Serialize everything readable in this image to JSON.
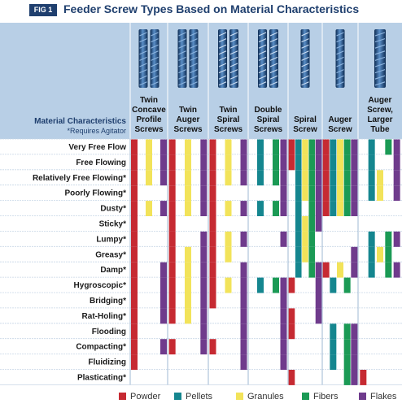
{
  "figure_label": "FIG 1",
  "title": "Feeder Screw Types Based on Material Characteristics",
  "header_label_line1": "Material Characteristics",
  "header_label_line2": "*Requires Agitator",
  "colors": {
    "Powder": "#c62a32",
    "Pellets": "#15868f",
    "Granules": "#f2e35a",
    "Fibers": "#1b9a55",
    "Flakes": "#6f3b8c"
  },
  "chart_data": {
    "type": "table",
    "title": "Feeder Screw Types Based on Material Characteristics",
    "columns": [
      {
        "name": "Twin Concave Profile Screws",
        "lines": [
          "Twin",
          "Concave",
          "Profile",
          "Screws"
        ]
      },
      {
        "name": "Twin Auger Screws",
        "lines": [
          "Twin",
          "Auger",
          "Screws"
        ]
      },
      {
        "name": "Twin Spiral Screws",
        "lines": [
          "Twin",
          "Spiral",
          "Screws"
        ]
      },
      {
        "name": "Double Spiral Screws",
        "lines": [
          "Double",
          "Spiral",
          "Screws"
        ]
      },
      {
        "name": "Spiral Screw",
        "lines": [
          "Spiral",
          "Screw"
        ]
      },
      {
        "name": "Auger Screw",
        "lines": [
          "Auger",
          "Screw"
        ]
      },
      {
        "name": "Auger Screw, Larger Tube",
        "lines": [
          "Auger",
          "Screw,",
          "Larger",
          "Tube"
        ]
      }
    ],
    "rows": [
      "Very Free Flow",
      "Free Flowing",
      "Relatively Free Flowing*",
      "Poorly Flowing*",
      "Dusty*",
      "Sticky*",
      "Lumpy*",
      "Greasy*",
      "Damp*",
      "Hygroscopic*",
      "Bridging*",
      "Rat-Holing*",
      "Flooding",
      "Compacting*",
      "Fluidizing",
      "Plasticating*"
    ],
    "legend": [
      "Powder",
      "Pellets",
      "Granules",
      "Fibers",
      "Flakes"
    ],
    "cells": [
      [
        [
          "Powder",
          "Granules",
          "Flakes"
        ],
        [
          "Powder",
          "Granules",
          "Flakes"
        ],
        [
          "Powder",
          "Granules",
          "Flakes"
        ],
        [
          "Pellets",
          "Fibers",
          "Flakes"
        ],
        [
          "Powder",
          "Pellets",
          "Granules",
          "Fibers",
          "Flakes"
        ],
        [
          "Powder",
          "Pellets",
          "Granules",
          "Fibers",
          "Flakes"
        ],
        [
          "Pellets",
          "Fibers",
          "Flakes"
        ]
      ],
      [
        [
          "Powder",
          "Granules",
          "Flakes"
        ],
        [
          "Powder",
          "Granules",
          "Flakes"
        ],
        [
          "Powder",
          "Granules",
          "Flakes"
        ],
        [
          "Pellets",
          "Fibers",
          "Flakes"
        ],
        [
          "Powder",
          "Pellets",
          "Granules",
          "Fibers",
          "Flakes"
        ],
        [
          "Powder",
          "Pellets",
          "Granules",
          "Fibers",
          "Flakes"
        ],
        [
          "Pellets",
          "Flakes"
        ]
      ],
      [
        [
          "Powder",
          "Granules",
          "Flakes"
        ],
        [
          "Powder",
          "Granules",
          "Flakes"
        ],
        [
          "Powder",
          "Granules",
          "Flakes"
        ],
        [
          "Pellets",
          "Fibers",
          "Flakes"
        ],
        [
          "Pellets",
          "Granules",
          "Fibers",
          "Flakes"
        ],
        [
          "Powder",
          "Pellets",
          "Granules",
          "Fibers",
          "Flakes"
        ],
        [
          "Pellets",
          "Granules",
          "Flakes"
        ]
      ],
      [
        [
          "Powder"
        ],
        [
          "Powder",
          "Granules",
          "Flakes"
        ],
        [
          "Powder"
        ],
        [
          "Flakes"
        ],
        [
          "Pellets",
          "Granules",
          "Fibers",
          "Flakes"
        ],
        [
          "Powder",
          "Pellets",
          "Granules",
          "Fibers",
          "Flakes"
        ],
        [
          "Pellets",
          "Granules",
          "Flakes"
        ]
      ],
      [
        [
          "Powder",
          "Granules",
          "Flakes"
        ],
        [
          "Powder",
          "Granules",
          "Flakes"
        ],
        [
          "Powder",
          "Granules",
          "Flakes"
        ],
        [
          "Pellets",
          "Fibers",
          "Flakes"
        ],
        [
          "Pellets",
          "Fibers",
          "Flakes"
        ],
        [
          "Powder",
          "Pellets",
          "Granules",
          "Fibers",
          "Flakes"
        ],
        []
      ],
      [
        [
          "Powder"
        ],
        [
          "Powder"
        ],
        [
          "Powder"
        ],
        [],
        [
          "Pellets",
          "Granules",
          "Fibers",
          "Flakes"
        ],
        [],
        []
      ],
      [
        [
          "Powder"
        ],
        [
          "Powder",
          "Flakes"
        ],
        [
          "Powder",
          "Granules",
          "Flakes"
        ],
        [
          "Flakes"
        ],
        [
          "Pellets",
          "Granules",
          "Fibers"
        ],
        [],
        [
          "Pellets",
          "Fibers",
          "Flakes"
        ]
      ],
      [
        [
          "Powder"
        ],
        [
          "Powder",
          "Granules",
          "Flakes"
        ],
        [
          "Powder",
          "Granules"
        ],
        [],
        [
          "Pellets",
          "Granules",
          "Fibers"
        ],
        [
          "Flakes"
        ],
        [
          "Pellets",
          "Granules",
          "Fibers"
        ]
      ],
      [
        [
          "Powder",
          "Flakes"
        ],
        [
          "Powder",
          "Granules",
          "Flakes"
        ],
        [
          "Powder",
          "Flakes"
        ],
        [],
        [
          "Pellets",
          "Fibers",
          "Flakes"
        ],
        [
          "Powder",
          "Granules",
          "Flakes"
        ],
        [
          "Pellets",
          "Fibers",
          "Flakes"
        ]
      ],
      [
        [
          "Powder",
          "Flakes"
        ],
        [
          "Powder",
          "Granules",
          "Flakes"
        ],
        [
          "Powder",
          "Granules",
          "Flakes"
        ],
        [
          "Pellets",
          "Fibers",
          "Flakes"
        ],
        [
          "Powder",
          "Flakes"
        ],
        [
          "Pellets",
          "Fibers"
        ],
        []
      ],
      [
        [
          "Powder",
          "Flakes"
        ],
        [
          "Powder",
          "Granules",
          "Flakes"
        ],
        [
          "Powder",
          "Flakes"
        ],
        [
          "Flakes"
        ],
        [
          "Flakes"
        ],
        [],
        []
      ],
      [
        [
          "Powder",
          "Flakes"
        ],
        [
          "Powder",
          "Granules",
          "Flakes"
        ],
        [
          "Flakes"
        ],
        [
          "Flakes"
        ],
        [
          "Powder",
          "Flakes"
        ],
        [],
        []
      ],
      [
        [
          "Powder"
        ],
        [
          "Flakes"
        ],
        [
          "Flakes"
        ],
        [
          "Flakes"
        ],
        [
          "Powder"
        ],
        [
          "Pellets",
          "Fibers",
          "Flakes"
        ],
        []
      ],
      [
        [
          "Powder",
          "Flakes"
        ],
        [
          "Powder",
          "Flakes"
        ],
        [
          "Powder",
          "Flakes"
        ],
        [
          "Flakes"
        ],
        [],
        [
          "Pellets",
          "Fibers",
          "Flakes"
        ],
        []
      ],
      [
        [
          "Powder"
        ],
        [],
        [
          "Flakes"
        ],
        [
          "Flakes"
        ],
        [],
        [
          "Pellets",
          "Fibers",
          "Flakes"
        ],
        []
      ],
      [
        [],
        [],
        [],
        [],
        [
          "Powder"
        ],
        [
          "Fibers",
          "Flakes"
        ],
        [
          "Powder"
        ]
      ]
    ]
  }
}
